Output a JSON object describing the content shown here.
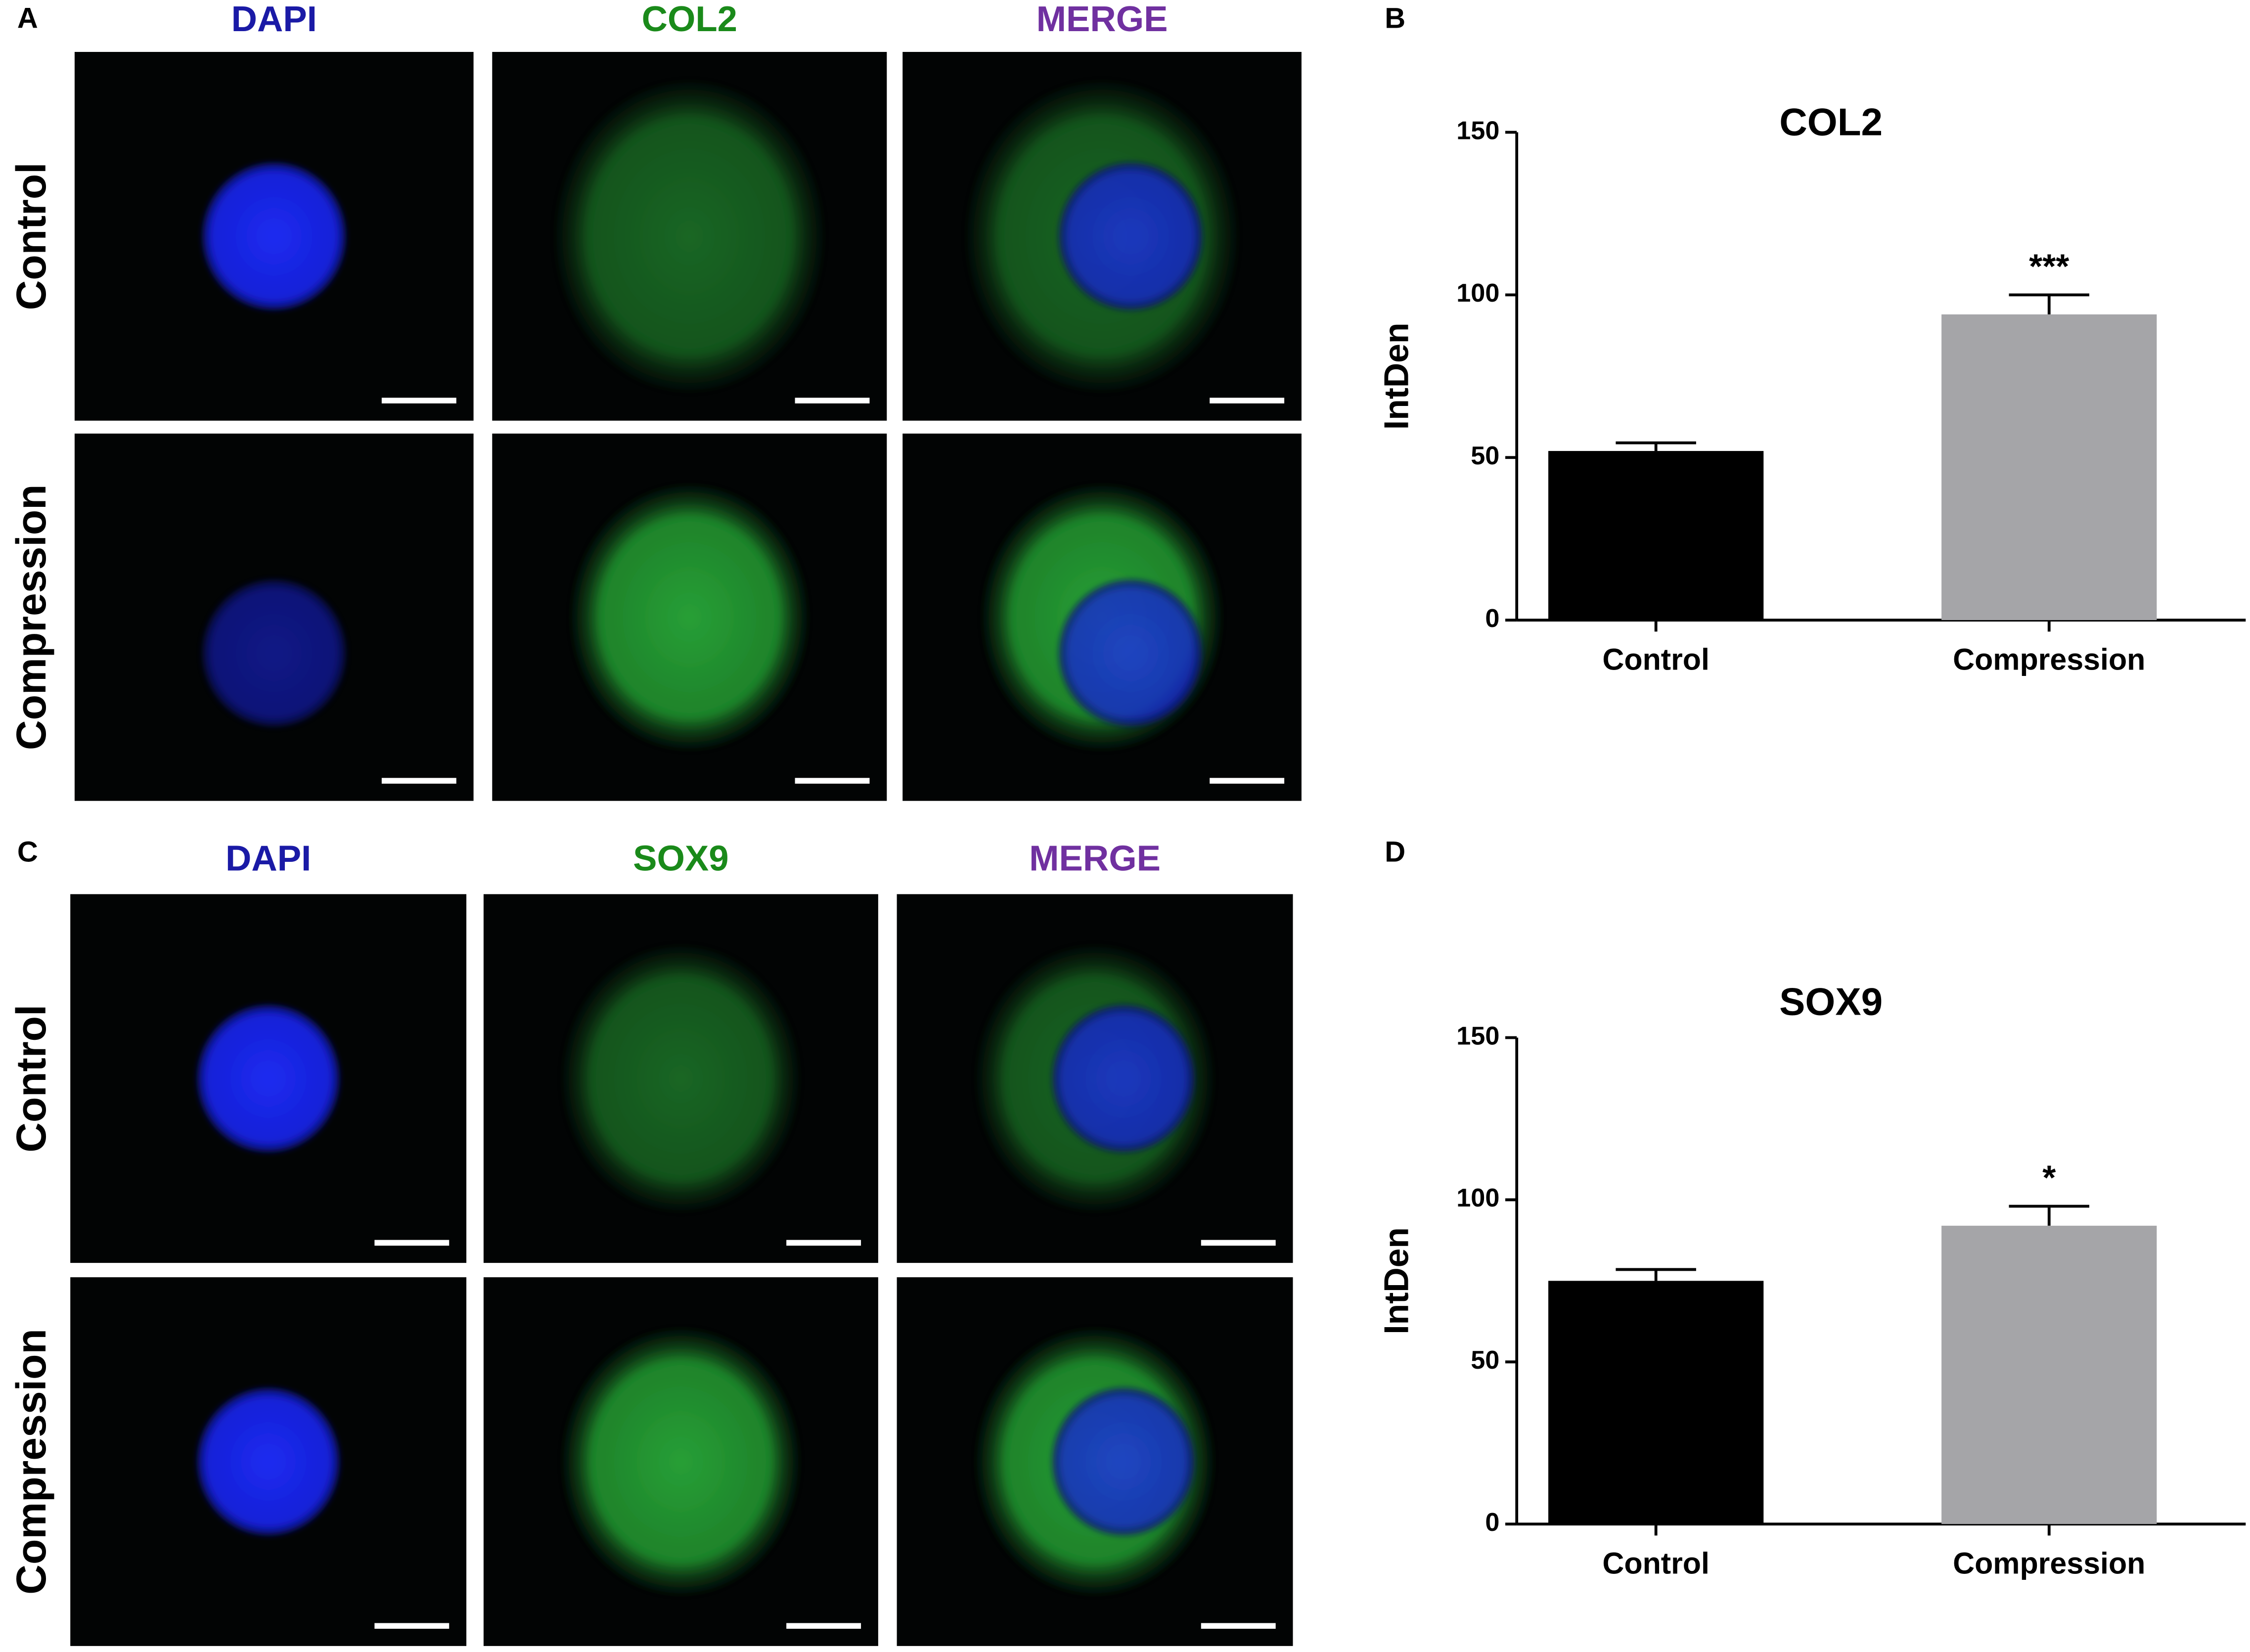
{
  "figure": {
    "panels": [
      {
        "letter": "A",
        "headers": [
          "DAPI",
          "COL2",
          "MERGE"
        ],
        "rows": [
          "Control",
          "Compression"
        ]
      },
      {
        "letter": "C",
        "headers": [
          "DAPI",
          "SOX9",
          "MERGE"
        ],
        "rows": [
          "Control",
          "Compression"
        ]
      }
    ],
    "chart_letters": [
      "B",
      "D"
    ]
  },
  "chart_data": [
    {
      "type": "bar",
      "title": "COL2",
      "ylabel": "IntDen",
      "categories": [
        "Control",
        "Compression"
      ],
      "values": [
        52,
        94
      ],
      "errors": [
        2.5,
        6
      ],
      "colors": [
        "#000000",
        "#a5a5a8"
      ],
      "annotations": [
        null,
        "***"
      ],
      "ylim": [
        0,
        150
      ],
      "yticks": [
        0,
        50,
        100,
        150
      ]
    },
    {
      "type": "bar",
      "title": "SOX9",
      "ylabel": "IntDen",
      "categories": [
        "Control",
        "Compression"
      ],
      "values": [
        75,
        92
      ],
      "errors": [
        3.5,
        6
      ],
      "colors": [
        "#000000",
        "#a5a5a8"
      ],
      "annotations": [
        null,
        "*"
      ],
      "ylim": [
        0,
        150
      ],
      "yticks": [
        0,
        50,
        100,
        150
      ]
    }
  ]
}
